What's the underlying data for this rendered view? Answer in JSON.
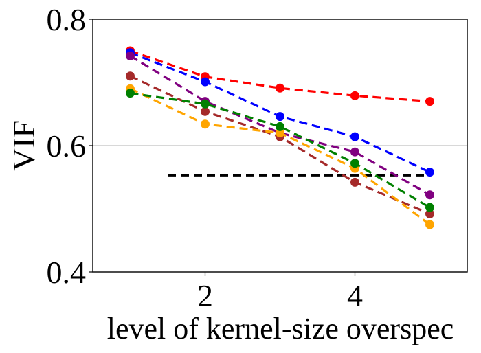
{
  "chart_data": {
    "type": "line",
    "title": "",
    "xlabel": "level of kernel-size overspec",
    "ylabel": "VIF",
    "xlim": [
      0.5,
      5.5
    ],
    "ylim": [
      0.4,
      0.8
    ],
    "xticks": [
      2,
      4
    ],
    "xtick_labels": [
      "2",
      "4"
    ],
    "yticks": [
      0.4,
      0.6,
      0.8
    ],
    "ytick_labels": [
      "0.4",
      "0.6",
      "0.8"
    ],
    "grid": true,
    "x": [
      1,
      2,
      3,
      4,
      5
    ],
    "series": [
      {
        "name": "red",
        "color": "#ff0000",
        "values": [
          0.75,
          0.709,
          0.691,
          0.679,
          0.67
        ]
      },
      {
        "name": "blue",
        "color": "#0000ff",
        "values": [
          0.747,
          0.701,
          0.646,
          0.614,
          0.558
        ]
      },
      {
        "name": "purple",
        "color": "#800080",
        "values": [
          0.742,
          0.67,
          0.62,
          0.59,
          0.522
        ]
      },
      {
        "name": "brown",
        "color": "#a52a2a",
        "values": [
          0.71,
          0.654,
          0.614,
          0.542,
          0.492
        ]
      },
      {
        "name": "orange",
        "color": "#ffa500",
        "values": [
          0.69,
          0.634,
          0.62,
          0.564,
          0.475
        ]
      },
      {
        "name": "green",
        "color": "#008000",
        "values": [
          0.683,
          0.666,
          0.63,
          0.572,
          0.502
        ]
      }
    ],
    "reference_line": {
      "name": "baseline",
      "color": "#000000",
      "value": 0.553,
      "x_range": [
        1.5,
        5
      ]
    }
  }
}
